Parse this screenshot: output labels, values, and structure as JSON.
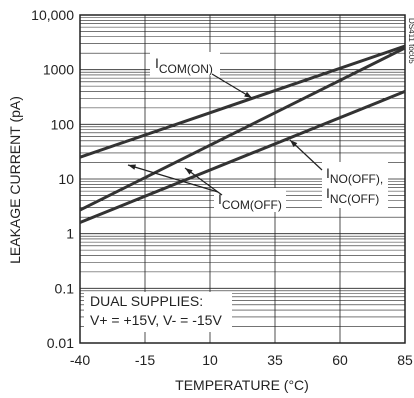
{
  "chart_data": {
    "type": "line",
    "xlabel": "TEMPERATURE (°C)",
    "ylabel": "LEAKAGE CURRENT (pA)",
    "x": [
      -40,
      85
    ],
    "series": [
      {
        "name": "ICOM(ON)",
        "color": "#333333",
        "values": [
          25,
          2700
        ]
      },
      {
        "name": "ICOM(OFF)",
        "color": "#333333",
        "values": [
          2.7,
          2500
        ]
      },
      {
        "name": "INO(OFF),",
        "color": "#333333",
        "values": [
          1.6,
          400
        ]
      }
    ],
    "annotations": [
      "INC(OFF)",
      "DUAL SUPPLIES:",
      "V+ = +15V, V- = -15V",
      "DS411 toc05"
    ],
    "xlim": [
      -40,
      85
    ],
    "xticks": [
      -40,
      -15,
      10,
      35,
      60,
      85
    ],
    "ylim": [
      0.01,
      10000
    ],
    "yticks": [
      0.01,
      0.1,
      1,
      10,
      100,
      1000,
      {
        "value": 10000,
        "label": "10,000"
      }
    ],
    "log_y": true,
    "grid": true
  }
}
